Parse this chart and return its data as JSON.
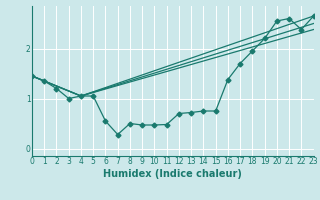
{
  "xlabel": "Humidex (Indice chaleur)",
  "ylabel": "",
  "background_color": "#cce8ea",
  "line_color": "#1a7a6e",
  "grid_color": "#ffffff",
  "xmin": 0,
  "xmax": 23,
  "ymin": -0.15,
  "ymax": 2.85,
  "yticks": [
    0,
    1,
    2
  ],
  "line1_x": [
    0,
    1,
    2,
    3,
    4,
    5,
    6,
    7,
    8,
    9,
    10,
    11,
    12,
    13,
    14,
    15,
    16,
    17,
    18,
    19,
    20,
    21,
    22,
    23
  ],
  "line1_y": [
    1.45,
    1.35,
    1.2,
    1.0,
    1.05,
    1.05,
    0.55,
    0.28,
    0.5,
    0.47,
    0.47,
    0.48,
    0.7,
    0.72,
    0.75,
    0.75,
    1.38,
    1.7,
    1.95,
    2.2,
    2.55,
    2.6,
    2.38,
    2.65
  ],
  "line2_x": [
    0,
    4,
    23
  ],
  "line2_y": [
    1.45,
    1.05,
    2.65
  ],
  "line3_x": [
    0,
    4,
    23
  ],
  "line3_y": [
    1.45,
    1.05,
    2.5
  ],
  "line4_x": [
    0,
    4,
    23
  ],
  "line4_y": [
    1.45,
    1.05,
    2.38
  ],
  "marker_style": "D",
  "marker_size": 2.5,
  "linewidth": 0.9,
  "tick_fontsize": 5.5,
  "xlabel_fontsize": 7
}
